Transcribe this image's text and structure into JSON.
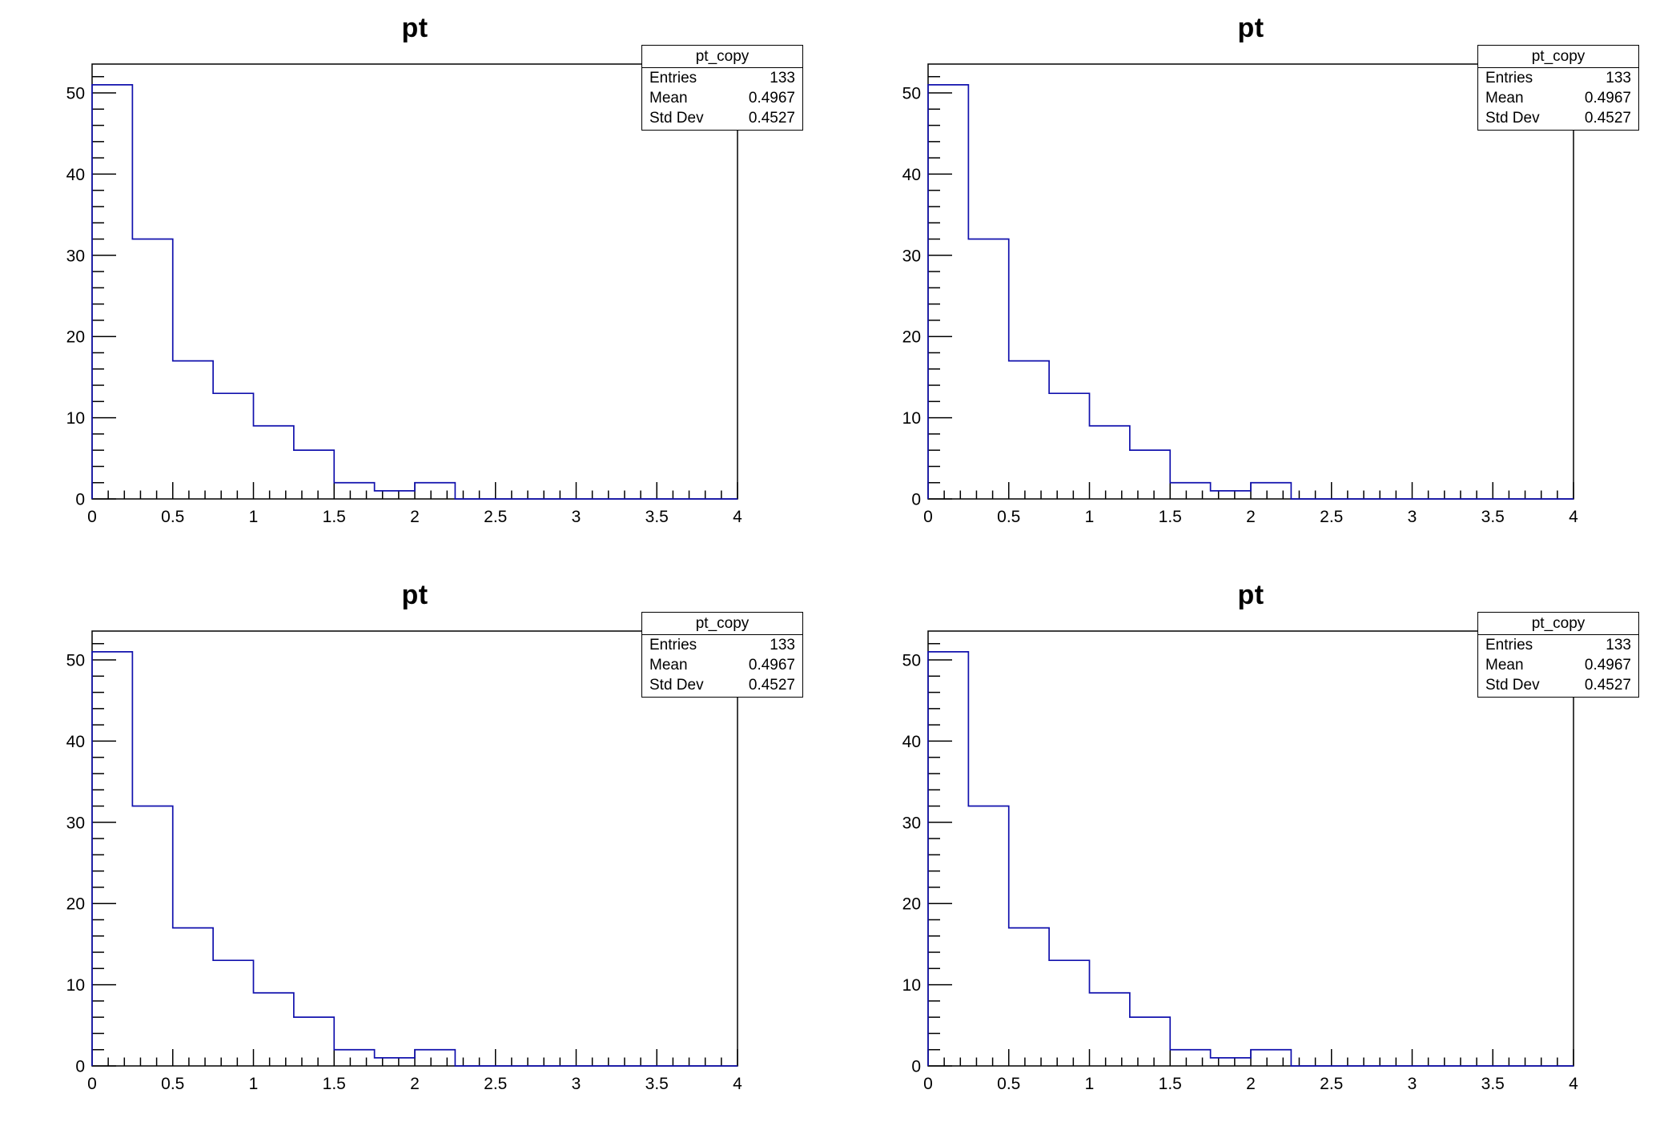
{
  "canvas": {
    "background": "#ffffff",
    "layout": "2x2-grid"
  },
  "chart_data": [
    {
      "type": "histogram",
      "title": "pt",
      "xlabel": "",
      "ylabel": "",
      "x_range": [
        0,
        4
      ],
      "y_range": [
        0,
        53.55
      ],
      "grid": false,
      "line_color": "#1111ad",
      "bins": {
        "start": 0,
        "width": 0.25,
        "counts": [
          51,
          32,
          17,
          13,
          9,
          6,
          2,
          1,
          2,
          0,
          0,
          0,
          0,
          0,
          0,
          0
        ]
      },
      "x_axis": {
        "major_ticks": [
          0,
          0.5,
          1,
          1.5,
          2,
          2.5,
          3,
          3.5,
          4
        ],
        "major_tick_labels": [
          "0",
          "0.5",
          "1",
          "1.5",
          "2",
          "2.5",
          "3",
          "3.5",
          "4"
        ],
        "minor_tick_step": 0.1
      },
      "y_axis": {
        "major_ticks": [
          0,
          10,
          20,
          30,
          40,
          50
        ],
        "major_tick_labels": [
          "0",
          "10",
          "20",
          "30",
          "40",
          "50"
        ],
        "minor_tick_step": 2
      },
      "stats_box": {
        "title": "pt_copy",
        "rows": [
          {
            "label": "Entries",
            "value": "133"
          },
          {
            "label": "Mean",
            "value": "0.4967"
          },
          {
            "label": "Std Dev",
            "value": "0.4527"
          }
        ]
      }
    },
    {
      "type": "histogram",
      "title": "pt",
      "xlabel": "",
      "ylabel": "",
      "x_range": [
        0,
        4
      ],
      "y_range": [
        0,
        53.55
      ],
      "grid": false,
      "line_color": "#1111ad",
      "bins": {
        "start": 0,
        "width": 0.25,
        "counts": [
          51,
          32,
          17,
          13,
          9,
          6,
          2,
          1,
          2,
          0,
          0,
          0,
          0,
          0,
          0,
          0
        ]
      },
      "x_axis": {
        "major_ticks": [
          0,
          0.5,
          1,
          1.5,
          2,
          2.5,
          3,
          3.5,
          4
        ],
        "major_tick_labels": [
          "0",
          "0.5",
          "1",
          "1.5",
          "2",
          "2.5",
          "3",
          "3.5",
          "4"
        ],
        "minor_tick_step": 0.1
      },
      "y_axis": {
        "major_ticks": [
          0,
          10,
          20,
          30,
          40,
          50
        ],
        "major_tick_labels": [
          "0",
          "10",
          "20",
          "30",
          "40",
          "50"
        ],
        "minor_tick_step": 2
      },
      "stats_box": {
        "title": "pt_copy",
        "rows": [
          {
            "label": "Entries",
            "value": "133"
          },
          {
            "label": "Mean",
            "value": "0.4967"
          },
          {
            "label": "Std Dev",
            "value": "0.4527"
          }
        ]
      }
    },
    {
      "type": "histogram",
      "title": "pt",
      "xlabel": "",
      "ylabel": "",
      "x_range": [
        0,
        4
      ],
      "y_range": [
        0,
        53.55
      ],
      "grid": false,
      "line_color": "#1111ad",
      "bins": {
        "start": 0,
        "width": 0.25,
        "counts": [
          51,
          32,
          17,
          13,
          9,
          6,
          2,
          1,
          2,
          0,
          0,
          0,
          0,
          0,
          0,
          0
        ]
      },
      "x_axis": {
        "major_ticks": [
          0,
          0.5,
          1,
          1.5,
          2,
          2.5,
          3,
          3.5,
          4
        ],
        "major_tick_labels": [
          "0",
          "0.5",
          "1",
          "1.5",
          "2",
          "2.5",
          "3",
          "3.5",
          "4"
        ],
        "minor_tick_step": 0.1
      },
      "y_axis": {
        "major_ticks": [
          0,
          10,
          20,
          30,
          40,
          50
        ],
        "major_tick_labels": [
          "0",
          "10",
          "20",
          "30",
          "40",
          "50"
        ],
        "minor_tick_step": 2
      },
      "stats_box": {
        "title": "pt_copy",
        "rows": [
          {
            "label": "Entries",
            "value": "133"
          },
          {
            "label": "Mean",
            "value": "0.4967"
          },
          {
            "label": "Std Dev",
            "value": "0.4527"
          }
        ]
      }
    },
    {
      "type": "histogram",
      "title": "pt",
      "xlabel": "",
      "ylabel": "",
      "x_range": [
        0,
        4
      ],
      "y_range": [
        0,
        53.55
      ],
      "grid": false,
      "line_color": "#1111ad",
      "bins": {
        "start": 0,
        "width": 0.25,
        "counts": [
          51,
          32,
          17,
          13,
          9,
          6,
          2,
          1,
          2,
          0,
          0,
          0,
          0,
          0,
          0,
          0
        ]
      },
      "x_axis": {
        "major_ticks": [
          0,
          0.5,
          1,
          1.5,
          2,
          2.5,
          3,
          3.5,
          4
        ],
        "major_tick_labels": [
          "0",
          "0.5",
          "1",
          "1.5",
          "2",
          "2.5",
          "3",
          "3.5",
          "4"
        ],
        "minor_tick_step": 0.1
      },
      "y_axis": {
        "major_ticks": [
          0,
          10,
          20,
          30,
          40,
          50
        ],
        "major_tick_labels": [
          "0",
          "10",
          "20",
          "30",
          "40",
          "50"
        ],
        "minor_tick_step": 2
      },
      "stats_box": {
        "title": "pt_copy",
        "rows": [
          {
            "label": "Entries",
            "value": "133"
          },
          {
            "label": "Mean",
            "value": "0.4967"
          },
          {
            "label": "Std Dev",
            "value": "0.4527"
          }
        ]
      }
    }
  ]
}
